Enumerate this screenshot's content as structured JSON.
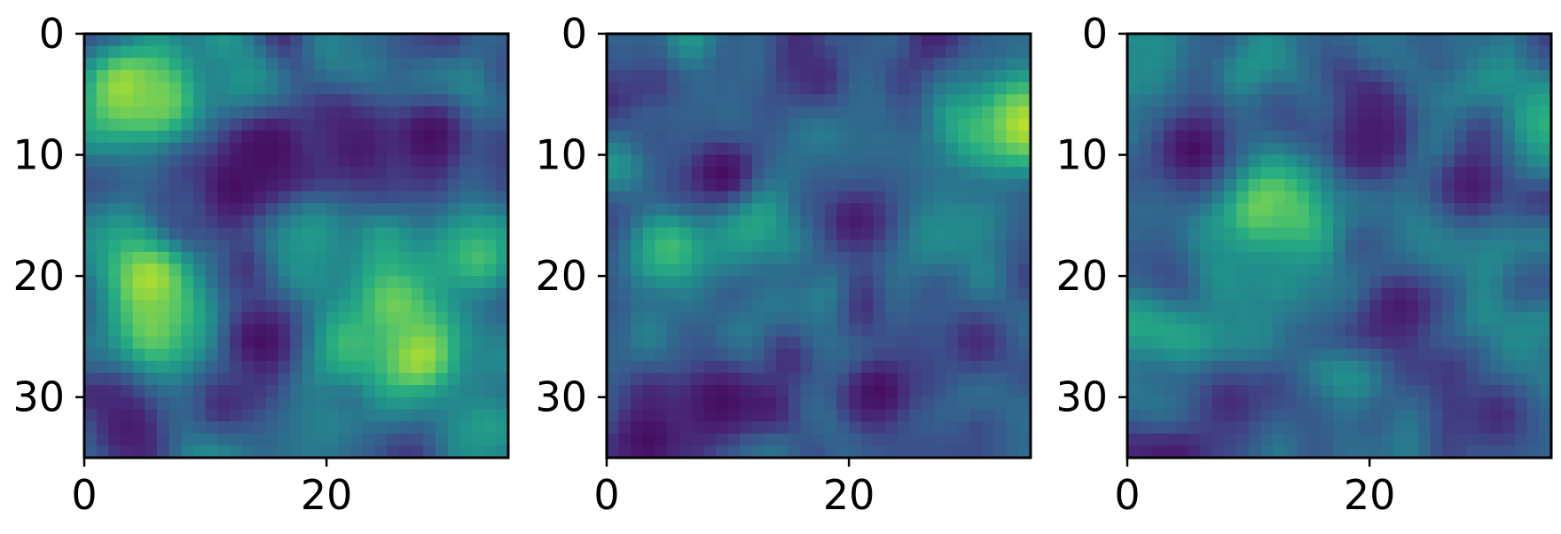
{
  "chart_data": [
    {
      "type": "heatmap",
      "title": "",
      "xlabel": "",
      "ylabel": "",
      "colormap": "viridis",
      "xlim": [
        0,
        35
      ],
      "ylim": [
        35,
        0
      ],
      "x_ticks": [
        0,
        20
      ],
      "y_ticks": [
        0,
        10,
        20,
        30
      ],
      "x_tick_labels": [
        "0",
        "20"
      ],
      "y_tick_labels": [
        "0",
        "10",
        "20",
        "30"
      ],
      "grid_size": [
        35,
        35
      ],
      "features": [
        {
          "x": 3,
          "y": 4,
          "value": 0.9
        },
        {
          "x": 6,
          "y": 5,
          "value": 0.8
        },
        {
          "x": 13,
          "y": 4,
          "value": 0.55
        },
        {
          "x": 5,
          "y": 20,
          "value": 0.9
        },
        {
          "x": 6,
          "y": 24,
          "value": 0.85
        },
        {
          "x": 9,
          "y": 25,
          "value": 0.7
        },
        {
          "x": 27,
          "y": 26,
          "value": 0.9
        },
        {
          "x": 25,
          "y": 22,
          "value": 0.8
        },
        {
          "x": 21,
          "y": 25,
          "value": 0.7
        },
        {
          "x": 32,
          "y": 18,
          "value": 0.7
        },
        {
          "x": 18,
          "y": 16,
          "value": 0.55
        },
        {
          "x": 12,
          "y": 12,
          "value": 0.05
        },
        {
          "x": 15,
          "y": 9,
          "value": 0.05
        },
        {
          "x": 22,
          "y": 9,
          "value": 0.1
        },
        {
          "x": 28,
          "y": 8,
          "value": 0.05
        },
        {
          "x": 14,
          "y": 25,
          "value": 0.05
        },
        {
          "x": 3,
          "y": 32,
          "value": 0.1
        },
        {
          "x": 11,
          "y": 30,
          "value": 0.15
        },
        {
          "x": 33,
          "y": 32,
          "value": 0.55
        }
      ]
    },
    {
      "type": "heatmap",
      "title": "",
      "xlabel": "",
      "ylabel": "",
      "colormap": "viridis",
      "xlim": [
        0,
        35
      ],
      "ylim": [
        35,
        0
      ],
      "x_ticks": [
        0,
        20
      ],
      "y_ticks": [
        0,
        10,
        20,
        30
      ],
      "x_tick_labels": [
        "0",
        "20"
      ],
      "y_tick_labels": [
        "0",
        "10",
        "20",
        "30"
      ],
      "grid_size": [
        35,
        35
      ],
      "features": [
        {
          "x": 34,
          "y": 7,
          "value": 0.9
        },
        {
          "x": 11,
          "y": 14,
          "value": 0.75
        },
        {
          "x": 5,
          "y": 17,
          "value": 0.7
        },
        {
          "x": 17,
          "y": 7,
          "value": 0.5
        },
        {
          "x": 26,
          "y": 16,
          "value": 0.5
        },
        {
          "x": 9,
          "y": 11,
          "value": 0.05
        },
        {
          "x": 20,
          "y": 15,
          "value": 0.1
        },
        {
          "x": 9,
          "y": 30,
          "value": 0.05
        },
        {
          "x": 3,
          "y": 33,
          "value": 0.05
        },
        {
          "x": 22,
          "y": 29,
          "value": 0.05
        },
        {
          "x": 30,
          "y": 25,
          "value": 0.15
        },
        {
          "x": 17,
          "y": 3,
          "value": 0.15
        }
      ]
    },
    {
      "type": "heatmap",
      "title": "",
      "xlabel": "",
      "ylabel": "",
      "colormap": "viridis",
      "xlim": [
        0,
        35
      ],
      "ylim": [
        35,
        0
      ],
      "x_ticks": [
        0,
        20
      ],
      "y_ticks": [
        0,
        10,
        20,
        30
      ],
      "x_tick_labels": [
        "0",
        "20"
      ],
      "y_tick_labels": [
        "0",
        "10",
        "20",
        "30"
      ],
      "grid_size": [
        35,
        35
      ],
      "features": [
        {
          "x": 11,
          "y": 14,
          "value": 0.9
        },
        {
          "x": 13,
          "y": 15,
          "value": 0.75
        },
        {
          "x": 34,
          "y": 7,
          "value": 0.65
        },
        {
          "x": 25,
          "y": 17,
          "value": 0.5
        },
        {
          "x": 12,
          "y": 20,
          "value": 0.5
        },
        {
          "x": 5,
          "y": 9,
          "value": 0.05
        },
        {
          "x": 20,
          "y": 8,
          "value": 0.1
        },
        {
          "x": 28,
          "y": 12,
          "value": 0.1
        },
        {
          "x": 22,
          "y": 22,
          "value": 0.1
        },
        {
          "x": 8,
          "y": 30,
          "value": 0.15
        },
        {
          "x": 30,
          "y": 31,
          "value": 0.15
        }
      ]
    }
  ]
}
